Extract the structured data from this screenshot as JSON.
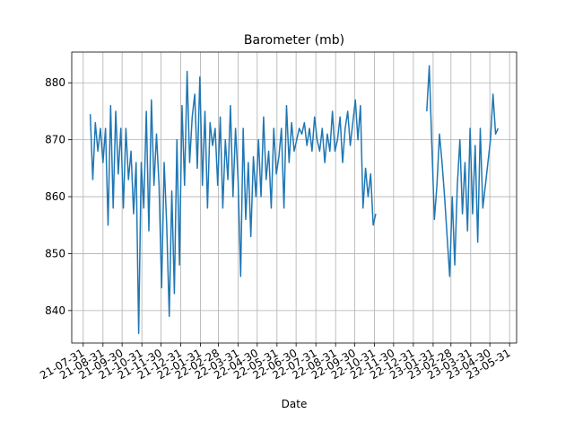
{
  "chart_data": {
    "type": "line",
    "title": "Barometer (mb)",
    "x_label": "Date",
    "x": [
      "2021-08-11",
      "2021-08-15",
      "2021-08-19",
      "2021-08-23",
      "2021-08-27",
      "2021-08-31",
      "2021-09-04",
      "2021-09-08",
      "2021-09-12",
      "2021-09-16",
      "2021-09-20",
      "2021-09-24",
      "2021-09-28",
      "2021-10-02",
      "2021-10-06",
      "2021-10-10",
      "2021-10-14",
      "2021-10-18",
      "2021-10-22",
      "2021-10-26",
      "2021-10-30",
      "2021-11-03",
      "2021-11-07",
      "2021-11-11",
      "2021-11-15",
      "2021-11-19",
      "2021-11-23",
      "2021-11-27",
      "2021-12-01",
      "2021-12-05",
      "2021-12-09",
      "2021-12-13",
      "2021-12-17",
      "2021-12-21",
      "2021-12-25",
      "2021-12-29",
      "2022-01-02",
      "2022-01-06",
      "2022-01-10",
      "2022-01-14",
      "2022-01-18",
      "2022-01-22",
      "2022-01-26",
      "2022-01-30",
      "2022-02-03",
      "2022-02-07",
      "2022-02-11",
      "2022-02-15",
      "2022-02-19",
      "2022-02-23",
      "2022-02-27",
      "2022-03-03",
      "2022-03-07",
      "2022-03-11",
      "2022-03-15",
      "2022-03-19",
      "2022-03-23",
      "2022-03-27",
      "2022-03-31",
      "2022-04-04",
      "2022-04-08",
      "2022-04-12",
      "2022-04-16",
      "2022-04-20",
      "2022-04-24",
      "2022-04-28",
      "2022-05-02",
      "2022-05-06",
      "2022-05-10",
      "2022-05-14",
      "2022-05-18",
      "2022-05-22",
      "2022-05-26",
      "2022-05-30",
      "2022-06-03",
      "2022-06-07",
      "2022-06-11",
      "2022-06-15",
      "2022-06-19",
      "2022-06-23",
      "2022-06-27",
      "2022-07-01",
      "2022-07-05",
      "2022-07-09",
      "2022-07-13",
      "2022-07-17",
      "2022-07-21",
      "2022-07-25",
      "2022-07-29",
      "2022-08-02",
      "2022-08-06",
      "2022-08-10",
      "2022-08-14",
      "2022-08-18",
      "2022-08-22",
      "2022-08-26",
      "2022-08-30",
      "2022-09-03",
      "2022-09-07",
      "2022-09-11",
      "2022-09-15",
      "2022-09-19",
      "2022-09-23",
      "2022-09-27",
      "2022-10-01",
      "2022-10-05",
      "2022-10-09",
      "2022-10-13",
      "2022-10-17",
      "2022-10-21",
      "2022-10-25",
      "2022-10-29",
      "2022-11-02",
      "2022-12-15",
      "2023-01-21",
      "2023-01-25",
      "2023-01-29",
      "2023-02-02",
      "2023-02-06",
      "2023-02-10",
      "2023-02-14",
      "2023-02-18",
      "2023-02-22",
      "2023-02-26",
      "2023-03-02",
      "2023-03-06",
      "2023-03-10",
      "2023-03-14",
      "2023-03-18",
      "2023-03-22",
      "2023-03-26",
      "2023-03-30",
      "2023-04-03",
      "2023-04-07",
      "2023-04-11",
      "2023-04-15",
      "2023-04-19",
      "2023-04-23",
      "2023-04-27",
      "2023-05-01",
      "2023-05-05",
      "2023-05-09",
      "2023-05-13"
    ],
    "series": [
      {
        "name": "Barometer",
        "color": "#1f77b4",
        "values": [
          874.5,
          863,
          873,
          868,
          872,
          866,
          872,
          855,
          876,
          858,
          875,
          864,
          872,
          858,
          872,
          863,
          868,
          857,
          866,
          836,
          866,
          858,
          875,
          854,
          877,
          862,
          871,
          862,
          844,
          866,
          855,
          839,
          861,
          843,
          870,
          848,
          876,
          862,
          882,
          866,
          874,
          878,
          865,
          881,
          862,
          875,
          858,
          873,
          869,
          872,
          862,
          874,
          858,
          870,
          863,
          876,
          860,
          872,
          863,
          846,
          872,
          856,
          866,
          853,
          867,
          860,
          870,
          860,
          874,
          863,
          868,
          858,
          872,
          864,
          867,
          872,
          858,
          876,
          866,
          873,
          868,
          870,
          872,
          871,
          873,
          869,
          872,
          868,
          874,
          870,
          868,
          872,
          866,
          871,
          868,
          875,
          868,
          870,
          874,
          866,
          872,
          875,
          869,
          873,
          877,
          870,
          876,
          858,
          865,
          860,
          864,
          855,
          857,
          null,
          875,
          883,
          869,
          856,
          862,
          871,
          866,
          860,
          853,
          846,
          860,
          848,
          862,
          870,
          857,
          866,
          854,
          872,
          857,
          869,
          852,
          872,
          858,
          862,
          866,
          870,
          878,
          871,
          872
        ]
      }
    ],
    "xlim": [
      "2021-07-13",
      "2023-06-11"
    ],
    "xticks": [
      {
        "value": "2021-07-31",
        "label": "21-07-31"
      },
      {
        "value": "2021-08-31",
        "label": "21-08-31"
      },
      {
        "value": "2021-09-30",
        "label": "21-09-30"
      },
      {
        "value": "2021-10-31",
        "label": "21-10-31"
      },
      {
        "value": "2021-11-30",
        "label": "21-11-30"
      },
      {
        "value": "2021-12-31",
        "label": "21-12-31"
      },
      {
        "value": "2022-01-31",
        "label": "22-01-31"
      },
      {
        "value": "2022-02-28",
        "label": "22-02-28"
      },
      {
        "value": "2022-03-31",
        "label": "22-03-31"
      },
      {
        "value": "2022-04-30",
        "label": "22-04-30"
      },
      {
        "value": "2022-05-31",
        "label": "22-05-31"
      },
      {
        "value": "2022-06-30",
        "label": "22-06-30"
      },
      {
        "value": "2022-07-31",
        "label": "22-07-31"
      },
      {
        "value": "2022-08-31",
        "label": "22-08-31"
      },
      {
        "value": "2022-09-30",
        "label": "22-09-30"
      },
      {
        "value": "2022-10-31",
        "label": "22-10-31"
      },
      {
        "value": "2022-11-30",
        "label": "22-11-30"
      },
      {
        "value": "2022-12-31",
        "label": "22-12-31"
      },
      {
        "value": "2023-01-31",
        "label": "23-01-31"
      },
      {
        "value": "2023-02-28",
        "label": "23-02-28"
      },
      {
        "value": "2023-03-31",
        "label": "23-03-31"
      },
      {
        "value": "2023-04-30",
        "label": "23-04-30"
      },
      {
        "value": "2023-05-31",
        "label": "23-05-31"
      }
    ],
    "ylim": [
      834.3,
      885.4
    ],
    "yticks": [
      840,
      850,
      860,
      870,
      880
    ],
    "grid": true
  }
}
